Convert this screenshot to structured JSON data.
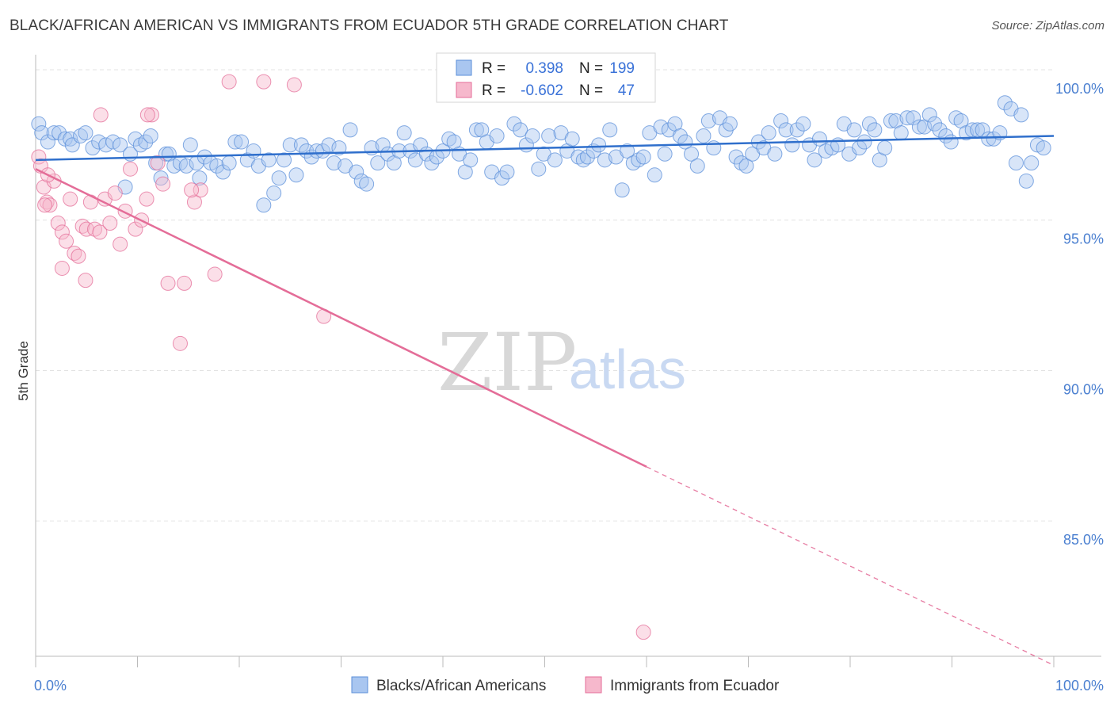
{
  "title": "BLACK/AFRICAN AMERICAN VS IMMIGRANTS FROM ECUADOR 5TH GRADE CORRELATION CHART",
  "source": "Source: ZipAtlas.com",
  "watermark": {
    "zip": "ZIP",
    "atlas": "atlas"
  },
  "colors": {
    "blue": "#5b8fd9",
    "blue_fill": "#a9c6f0",
    "pink": "#e46d98",
    "pink_fill": "#f6b8cc",
    "tick": "#4a7fd0"
  },
  "stats": [
    {
      "r_label": "R =",
      "r": "0.398",
      "n_label": "N =",
      "n": "199"
    },
    {
      "r_label": "R =",
      "r": "-0.602",
      "n_label": "N =",
      "n": "47"
    }
  ],
  "chart_data": {
    "type": "scatter",
    "xlabel": "",
    "ylabel": "5th Grade",
    "xlim": [
      0,
      100
    ],
    "ylim": [
      80.5,
      100.5
    ],
    "x_tick_labels": [
      "0.0%",
      "100.0%"
    ],
    "y_ticks": [
      85,
      90,
      95,
      100
    ],
    "y_tick_labels": [
      "85.0%",
      "90.0%",
      "95.0%",
      "100.0%"
    ],
    "grid": true,
    "legend_position": "bottom-center",
    "series": [
      {
        "name": "Blacks/African Americans",
        "color": "#5b8fd9",
        "trend": {
          "x": [
            0,
            100
          ],
          "y": [
            97.0,
            97.8
          ],
          "solid_until": 100
        },
        "points": [
          [
            0.3,
            98.2
          ],
          [
            0.6,
            97.9
          ],
          [
            1.2,
            97.6
          ],
          [
            1.8,
            97.9
          ],
          [
            2.3,
            97.9
          ],
          [
            2.9,
            97.7
          ],
          [
            3.4,
            97.7
          ],
          [
            3.6,
            97.5
          ],
          [
            4.4,
            97.8
          ],
          [
            4.9,
            97.9
          ],
          [
            5.6,
            97.4
          ],
          [
            6.2,
            97.6
          ],
          [
            6.9,
            97.5
          ],
          [
            7.6,
            97.6
          ],
          [
            8.3,
            97.5
          ],
          [
            8.8,
            96.1
          ],
          [
            9.3,
            97.2
          ],
          [
            9.8,
            97.7
          ],
          [
            10.3,
            97.5
          ],
          [
            10.8,
            97.6
          ],
          [
            11.3,
            97.8
          ],
          [
            11.8,
            96.9
          ],
          [
            12.3,
            96.4
          ],
          [
            12.8,
            97.2
          ],
          [
            13.1,
            97.2
          ],
          [
            13.6,
            96.8
          ],
          [
            14.2,
            96.9
          ],
          [
            14.8,
            96.8
          ],
          [
            15.2,
            97.5
          ],
          [
            15.8,
            96.9
          ],
          [
            16.1,
            96.4
          ],
          [
            16.6,
            97.1
          ],
          [
            17.2,
            96.9
          ],
          [
            17.8,
            96.8
          ],
          [
            18.4,
            96.6
          ],
          [
            19.0,
            96.9
          ],
          [
            19.6,
            97.6
          ],
          [
            20.2,
            97.6
          ],
          [
            20.8,
            97.0
          ],
          [
            21.4,
            97.3
          ],
          [
            21.9,
            96.8
          ],
          [
            22.4,
            95.5
          ],
          [
            22.9,
            97.0
          ],
          [
            23.4,
            95.9
          ],
          [
            23.9,
            96.4
          ],
          [
            24.4,
            97.0
          ],
          [
            25.0,
            97.5
          ],
          [
            25.6,
            96.5
          ],
          [
            26.1,
            97.5
          ],
          [
            26.6,
            97.3
          ],
          [
            27.1,
            97.1
          ],
          [
            27.6,
            97.3
          ],
          [
            28.2,
            97.3
          ],
          [
            28.8,
            97.5
          ],
          [
            29.3,
            96.9
          ],
          [
            29.8,
            97.4
          ],
          [
            30.4,
            96.8
          ],
          [
            30.9,
            98.0
          ],
          [
            31.5,
            96.6
          ],
          [
            32.0,
            96.3
          ],
          [
            32.5,
            96.2
          ],
          [
            33.0,
            97.4
          ],
          [
            33.6,
            96.9
          ],
          [
            34.1,
            97.5
          ],
          [
            34.6,
            97.2
          ],
          [
            35.2,
            96.9
          ],
          [
            35.7,
            97.3
          ],
          [
            36.2,
            97.9
          ],
          [
            36.8,
            97.3
          ],
          [
            37.3,
            97.0
          ],
          [
            37.8,
            97.5
          ],
          [
            38.4,
            97.2
          ],
          [
            38.9,
            96.9
          ],
          [
            39.4,
            97.1
          ],
          [
            40.0,
            97.3
          ],
          [
            40.6,
            97.7
          ],
          [
            41.1,
            97.6
          ],
          [
            41.6,
            97.2
          ],
          [
            42.2,
            96.6
          ],
          [
            42.7,
            97.0
          ],
          [
            43.3,
            98.0
          ],
          [
            43.8,
            98.0
          ],
          [
            44.3,
            97.6
          ],
          [
            44.8,
            96.6
          ],
          [
            45.3,
            97.8
          ],
          [
            45.8,
            96.4
          ],
          [
            46.3,
            96.6
          ],
          [
            47.0,
            98.2
          ],
          [
            47.6,
            98.0
          ],
          [
            48.2,
            97.5
          ],
          [
            48.8,
            97.8
          ],
          [
            49.4,
            96.7
          ],
          [
            49.9,
            97.2
          ],
          [
            50.4,
            97.8
          ],
          [
            51.0,
            97.0
          ],
          [
            51.6,
            97.9
          ],
          [
            52.2,
            97.3
          ],
          [
            52.7,
            97.7
          ],
          [
            53.3,
            97.1
          ],
          [
            53.8,
            97.0
          ],
          [
            54.2,
            97.1
          ],
          [
            54.8,
            97.3
          ],
          [
            55.3,
            97.5
          ],
          [
            55.9,
            97.0
          ],
          [
            56.4,
            98.0
          ],
          [
            57.0,
            97.1
          ],
          [
            57.6,
            96.0
          ],
          [
            58.1,
            97.3
          ],
          [
            58.7,
            96.9
          ],
          [
            59.2,
            97.0
          ],
          [
            59.7,
            97.1
          ],
          [
            60.3,
            97.9
          ],
          [
            60.8,
            96.5
          ],
          [
            61.4,
            98.1
          ],
          [
            61.8,
            97.2
          ],
          [
            62.2,
            98.0
          ],
          [
            62.8,
            98.2
          ],
          [
            63.3,
            97.8
          ],
          [
            63.8,
            97.6
          ],
          [
            64.4,
            97.2
          ],
          [
            65.0,
            96.8
          ],
          [
            65.6,
            97.8
          ],
          [
            66.1,
            98.3
          ],
          [
            66.6,
            97.4
          ],
          [
            67.2,
            98.4
          ],
          [
            67.8,
            98.0
          ],
          [
            68.2,
            98.2
          ],
          [
            68.8,
            97.1
          ],
          [
            69.3,
            96.9
          ],
          [
            69.8,
            96.8
          ],
          [
            70.4,
            97.2
          ],
          [
            71.0,
            97.6
          ],
          [
            71.5,
            97.4
          ],
          [
            72.0,
            97.9
          ],
          [
            72.6,
            97.2
          ],
          [
            73.2,
            98.3
          ],
          [
            73.7,
            98.0
          ],
          [
            74.3,
            97.5
          ],
          [
            74.8,
            98.0
          ],
          [
            75.4,
            98.2
          ],
          [
            76.0,
            97.5
          ],
          [
            76.5,
            97.0
          ],
          [
            77.0,
            97.7
          ],
          [
            77.6,
            97.3
          ],
          [
            78.2,
            97.4
          ],
          [
            78.8,
            97.5
          ],
          [
            79.4,
            98.2
          ],
          [
            79.9,
            97.2
          ],
          [
            80.4,
            98.0
          ],
          [
            80.9,
            97.4
          ],
          [
            81.4,
            97.6
          ],
          [
            81.9,
            98.2
          ],
          [
            82.4,
            98.0
          ],
          [
            82.9,
            97.0
          ],
          [
            83.4,
            97.4
          ],
          [
            84.0,
            98.3
          ],
          [
            84.5,
            98.3
          ],
          [
            85.0,
            97.9
          ],
          [
            85.6,
            98.4
          ],
          [
            86.2,
            98.4
          ],
          [
            86.8,
            98.1
          ],
          [
            87.3,
            98.1
          ],
          [
            87.8,
            98.5
          ],
          [
            88.3,
            98.2
          ],
          [
            88.8,
            98.0
          ],
          [
            89.4,
            97.8
          ],
          [
            89.9,
            97.6
          ],
          [
            90.4,
            98.4
          ],
          [
            90.9,
            98.3
          ],
          [
            91.4,
            97.9
          ],
          [
            92.0,
            98.0
          ],
          [
            92.5,
            98.0
          ],
          [
            93.0,
            98.0
          ],
          [
            93.6,
            97.7
          ],
          [
            94.1,
            97.7
          ],
          [
            94.7,
            97.9
          ],
          [
            95.2,
            98.9
          ],
          [
            95.8,
            98.7
          ],
          [
            96.3,
            96.9
          ],
          [
            96.8,
            98.5
          ],
          [
            97.3,
            96.3
          ],
          [
            97.8,
            96.9
          ],
          [
            98.4,
            97.5
          ],
          [
            99.0,
            97.4
          ]
        ]
      },
      {
        "name": "Immigrants from Ecuador",
        "color": "#e46d98",
        "trend": {
          "x": [
            0,
            100
          ],
          "y": [
            96.7,
            80.2
          ],
          "solid_until": 60
        },
        "points": [
          [
            0.3,
            97.1
          ],
          [
            0.5,
            96.8
          ],
          [
            0.8,
            96.1
          ],
          [
            1.1,
            95.6
          ],
          [
            1.4,
            95.5
          ],
          [
            1.8,
            96.3
          ],
          [
            2.2,
            94.9
          ],
          [
            2.6,
            94.6
          ],
          [
            3.0,
            94.3
          ],
          [
            3.4,
            95.7
          ],
          [
            3.8,
            93.9
          ],
          [
            4.2,
            93.8
          ],
          [
            4.6,
            94.8
          ],
          [
            5.0,
            94.7
          ],
          [
            5.4,
            95.6
          ],
          [
            5.8,
            94.7
          ],
          [
            6.3,
            94.6
          ],
          [
            6.8,
            95.7
          ],
          [
            7.3,
            94.9
          ],
          [
            7.8,
            95.9
          ],
          [
            8.3,
            94.2
          ],
          [
            8.8,
            95.3
          ],
          [
            9.3,
            96.7
          ],
          [
            9.8,
            94.7
          ],
          [
            10.4,
            95.0
          ],
          [
            10.9,
            95.7
          ],
          [
            11.4,
            98.5
          ],
          [
            12.0,
            96.9
          ],
          [
            12.5,
            96.2
          ],
          [
            13.0,
            92.9
          ],
          [
            14.2,
            90.9
          ],
          [
            15.6,
            95.6
          ],
          [
            16.2,
            96.0
          ],
          [
            17.6,
            93.2
          ],
          [
            19.0,
            99.6
          ],
          [
            22.4,
            99.6
          ],
          [
            25.4,
            99.5
          ],
          [
            28.3,
            91.8
          ],
          [
            59.7,
            81.3
          ],
          [
            2.6,
            93.4
          ],
          [
            4.9,
            93.0
          ],
          [
            6.4,
            98.5
          ],
          [
            11.0,
            98.5
          ],
          [
            14.6,
            92.9
          ],
          [
            1.2,
            96.5
          ],
          [
            0.9,
            95.5
          ],
          [
            15.3,
            96.0
          ]
        ]
      }
    ]
  },
  "legend": [
    {
      "label": "Blacks/African Americans"
    },
    {
      "label": "Immigrants from Ecuador"
    }
  ]
}
